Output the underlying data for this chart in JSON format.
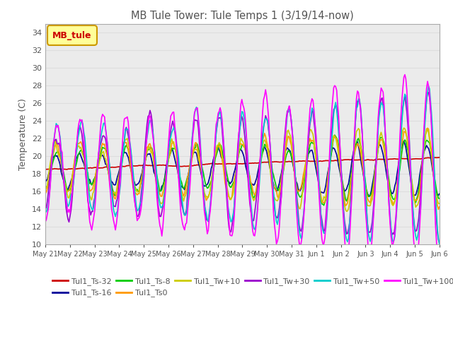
{
  "title": "MB Tule Tower: Tule Temps 1 (3/19/14-now)",
  "ylabel": "Temperature (C)",
  "ylim": [
    10,
    35
  ],
  "yticks": [
    10,
    12,
    14,
    16,
    18,
    20,
    22,
    24,
    26,
    28,
    30,
    32,
    34
  ],
  "legend_box_label": "MB_tule",
  "legend_box_color": "#ffff99",
  "legend_box_border": "#cc9900",
  "legend_box_text": "#cc0000",
  "series": [
    {
      "label": "Tul1_Ts-32",
      "color": "#cc0000"
    },
    {
      "label": "Tul1_Ts-16",
      "color": "#000099"
    },
    {
      "label": "Tul1_Ts-8",
      "color": "#00cc00"
    },
    {
      "label": "Tul1_Ts0",
      "color": "#ff9900"
    },
    {
      "label": "Tul1_Tw+10",
      "color": "#cccc00"
    },
    {
      "label": "Tul1_Tw+30",
      "color": "#9900cc"
    },
    {
      "label": "Tul1_Tw+50",
      "color": "#00cccc"
    },
    {
      "label": "Tul1_Tw+100",
      "color": "#ff00ff"
    }
  ],
  "background_color": "#ffffff",
  "grid_color": "#dddddd",
  "plot_bg": "#ebebeb",
  "num_points": 400
}
